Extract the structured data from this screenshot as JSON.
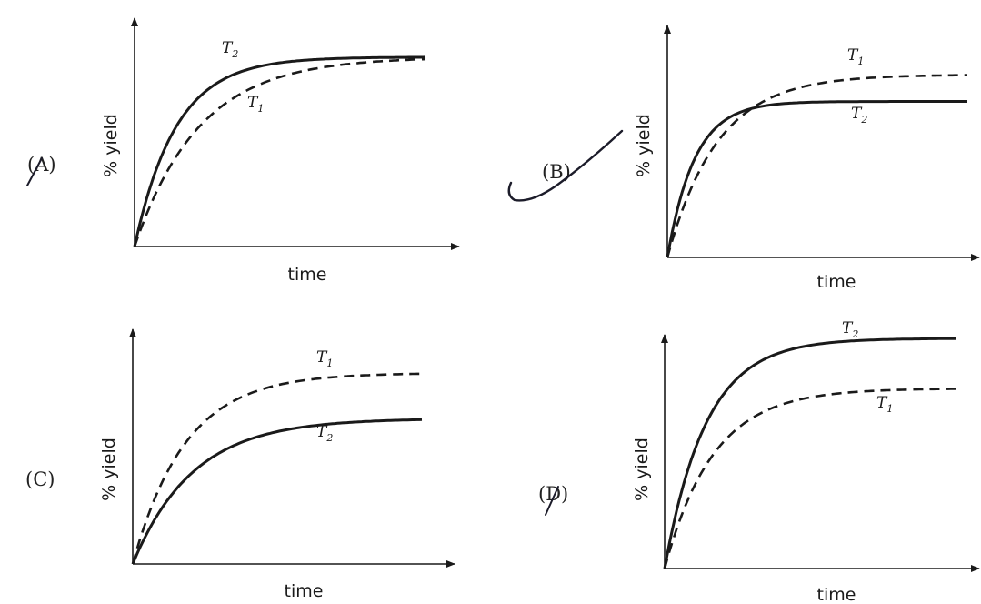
{
  "page": {
    "background": "#ffffff",
    "ink": "#1a1a1a",
    "pen_mark_color": "#1c1c2a"
  },
  "chart_data": [
    {
      "type": "line",
      "option_label": "(A)",
      "xlabel": "time",
      "ylabel": "% yield",
      "x_ticks": [],
      "y_ticks": [],
      "ylim": [
        0,
        100
      ],
      "curve_labels_visible": [
        "T2",
        "T1"
      ],
      "series": [
        {
          "name": "T2",
          "style": "solid",
          "plateau": 85,
          "rate": 7.0
        },
        {
          "name": "T1",
          "style": "dashed",
          "plateau": 85,
          "rate": 4.5
        }
      ]
    },
    {
      "type": "line",
      "option_label": "(B)",
      "xlabel": "time",
      "ylabel": "% yield",
      "x_ticks": [],
      "y_ticks": [],
      "ylim": [
        0,
        100
      ],
      "curve_labels_visible": [
        "T1",
        "T2"
      ],
      "series": [
        {
          "name": "T1",
          "style": "dashed",
          "plateau": 82,
          "rate": 6.0
        },
        {
          "name": "T2",
          "style": "solid",
          "plateau": 70,
          "rate": 11.0
        }
      ]
    },
    {
      "type": "line",
      "option_label": "(C)",
      "xlabel": "time",
      "ylabel": "% yield",
      "x_ticks": [],
      "y_ticks": [],
      "ylim": [
        0,
        100
      ],
      "curve_labels_visible": [
        "T1",
        "T2"
      ],
      "series": [
        {
          "name": "T1",
          "style": "dashed",
          "plateau": 84,
          "rate": 5.5
        },
        {
          "name": "T2",
          "style": "solid",
          "plateau": 64,
          "rate": 4.8
        }
      ]
    },
    {
      "type": "line",
      "option_label": "(D)",
      "xlabel": "time",
      "ylabel": "% yield",
      "x_ticks": [],
      "y_ticks": [],
      "ylim": [
        0,
        100
      ],
      "curve_labels_visible": [
        "T2",
        "T1"
      ],
      "series": [
        {
          "name": "T2",
          "style": "solid",
          "plateau": 92,
          "rate": 7.0
        },
        {
          "name": "T1",
          "style": "dashed",
          "plateau": 72,
          "rate": 6.0
        }
      ]
    }
  ]
}
